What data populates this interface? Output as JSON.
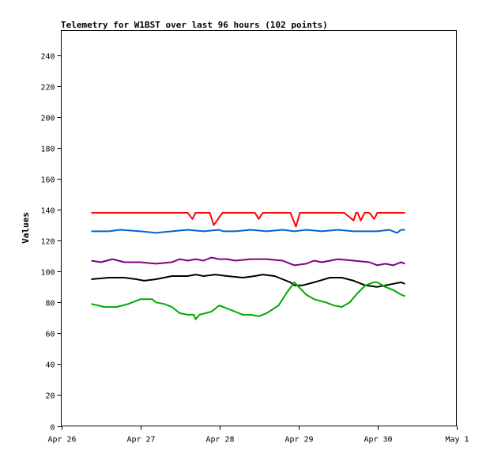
{
  "chart_data": {
    "type": "line",
    "title": "Telemetry for W1BST over last 96 hours (102 points)",
    "xlabel": "",
    "ylabel": "Values",
    "ylim": [
      0,
      256
    ],
    "yticks": [
      0,
      20,
      40,
      60,
      80,
      100,
      120,
      140,
      160,
      180,
      200,
      220,
      240
    ],
    "x_ticks": [
      "Apr 26",
      "Apr 27",
      "Apr 28",
      "Apr 29",
      "Apr 30",
      "May 1"
    ],
    "xlim": [
      0,
      5
    ],
    "grid": false,
    "legend": "none",
    "series": [
      {
        "color": "#ff0000",
        "points": [
          [
            0.38,
            138
          ],
          [
            1.0,
            138
          ],
          [
            1.6,
            138
          ],
          [
            1.66,
            134
          ],
          [
            1.7,
            138
          ],
          [
            1.88,
            138
          ],
          [
            1.93,
            130
          ],
          [
            2.04,
            138
          ],
          [
            2.45,
            138
          ],
          [
            2.5,
            134
          ],
          [
            2.55,
            138
          ],
          [
            2.9,
            138
          ],
          [
            2.97,
            129
          ],
          [
            3.02,
            138
          ],
          [
            3.58,
            138
          ],
          [
            3.7,
            133
          ],
          [
            3.73,
            138
          ],
          [
            3.75,
            138
          ],
          [
            3.79,
            133
          ],
          [
            3.84,
            138
          ],
          [
            3.9,
            138
          ],
          [
            3.96,
            134
          ],
          [
            4.0,
            138
          ],
          [
            4.35,
            138
          ]
        ]
      },
      {
        "color": "#0066cc",
        "points": [
          [
            0.38,
            126
          ],
          [
            0.6,
            126
          ],
          [
            0.75,
            127
          ],
          [
            1.0,
            126
          ],
          [
            1.2,
            125
          ],
          [
            1.4,
            126
          ],
          [
            1.6,
            127
          ],
          [
            1.8,
            126
          ],
          [
            2.0,
            127
          ],
          [
            2.05,
            126
          ],
          [
            2.2,
            126
          ],
          [
            2.4,
            127
          ],
          [
            2.6,
            126
          ],
          [
            2.8,
            127
          ],
          [
            2.95,
            126
          ],
          [
            3.1,
            127
          ],
          [
            3.3,
            126
          ],
          [
            3.5,
            127
          ],
          [
            3.7,
            126
          ],
          [
            4.0,
            126
          ],
          [
            4.15,
            127
          ],
          [
            4.25,
            125
          ],
          [
            4.3,
            127
          ],
          [
            4.35,
            127
          ]
        ]
      },
      {
        "color": "#800080",
        "points": [
          [
            0.38,
            107
          ],
          [
            0.5,
            106
          ],
          [
            0.65,
            108
          ],
          [
            0.8,
            106
          ],
          [
            1.0,
            106
          ],
          [
            1.2,
            105
          ],
          [
            1.4,
            106
          ],
          [
            1.5,
            108
          ],
          [
            1.6,
            107
          ],
          [
            1.7,
            108
          ],
          [
            1.8,
            107
          ],
          [
            1.9,
            109
          ],
          [
            2.0,
            108
          ],
          [
            2.1,
            108
          ],
          [
            2.2,
            107
          ],
          [
            2.4,
            108
          ],
          [
            2.6,
            108
          ],
          [
            2.8,
            107
          ],
          [
            2.95,
            104
          ],
          [
            3.1,
            105
          ],
          [
            3.2,
            107
          ],
          [
            3.3,
            106
          ],
          [
            3.5,
            108
          ],
          [
            3.7,
            107
          ],
          [
            3.9,
            106
          ],
          [
            4.0,
            104
          ],
          [
            4.1,
            105
          ],
          [
            4.2,
            104
          ],
          [
            4.3,
            106
          ],
          [
            4.35,
            105
          ]
        ]
      },
      {
        "color": "#000000",
        "points": [
          [
            0.38,
            95
          ],
          [
            0.6,
            96
          ],
          [
            0.8,
            96
          ],
          [
            0.95,
            95
          ],
          [
            1.05,
            94
          ],
          [
            1.2,
            95
          ],
          [
            1.4,
            97
          ],
          [
            1.6,
            97
          ],
          [
            1.7,
            98
          ],
          [
            1.8,
            97
          ],
          [
            1.95,
            98
          ],
          [
            2.1,
            97
          ],
          [
            2.3,
            96
          ],
          [
            2.45,
            97
          ],
          [
            2.55,
            98
          ],
          [
            2.7,
            97
          ],
          [
            2.8,
            95
          ],
          [
            2.9,
            93
          ],
          [
            2.95,
            91
          ],
          [
            3.05,
            91
          ],
          [
            3.2,
            93
          ],
          [
            3.4,
            96
          ],
          [
            3.55,
            96
          ],
          [
            3.7,
            94
          ],
          [
            3.85,
            91
          ],
          [
            4.0,
            90
          ],
          [
            4.1,
            91
          ],
          [
            4.2,
            92
          ],
          [
            4.3,
            93
          ],
          [
            4.35,
            92
          ]
        ]
      },
      {
        "color": "#00aa00",
        "points": [
          [
            0.38,
            79
          ],
          [
            0.55,
            77
          ],
          [
            0.7,
            77
          ],
          [
            0.85,
            79
          ],
          [
            1.0,
            82
          ],
          [
            1.15,
            82
          ],
          [
            1.2,
            80
          ],
          [
            1.3,
            79
          ],
          [
            1.4,
            77
          ],
          [
            1.5,
            73
          ],
          [
            1.6,
            72
          ],
          [
            1.68,
            72
          ],
          [
            1.7,
            69
          ],
          [
            1.75,
            72
          ],
          [
            1.9,
            74
          ],
          [
            2.0,
            78
          ],
          [
            2.1,
            76
          ],
          [
            2.2,
            74
          ],
          [
            2.3,
            72
          ],
          [
            2.4,
            72
          ],
          [
            2.5,
            71
          ],
          [
            2.6,
            73
          ],
          [
            2.75,
            78
          ],
          [
            2.85,
            86
          ],
          [
            2.95,
            93
          ],
          [
            3.1,
            85
          ],
          [
            3.2,
            82
          ],
          [
            3.35,
            80
          ],
          [
            3.45,
            78
          ],
          [
            3.55,
            77
          ],
          [
            3.65,
            80
          ],
          [
            3.75,
            86
          ],
          [
            3.85,
            91
          ],
          [
            3.95,
            93
          ],
          [
            4.0,
            93
          ],
          [
            4.1,
            90
          ],
          [
            4.2,
            88
          ],
          [
            4.3,
            85
          ],
          [
            4.35,
            84
          ]
        ]
      }
    ]
  }
}
